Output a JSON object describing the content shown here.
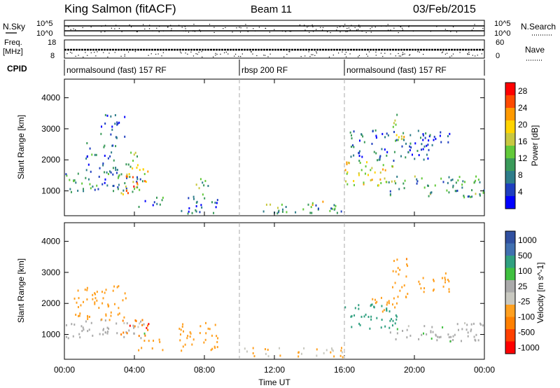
{
  "header": {
    "station": "King Salmon (fitACF)",
    "beam": "Beam 11",
    "date": "03/Feb/2015"
  },
  "strips": {
    "nsky_label": "N.Sky",
    "freq_label": "Freq.",
    "freq_unit": "[MHz]",
    "cpid_label": "CPID",
    "nsearch_label": "N.Search",
    "nave_label": "Nave",
    "noise_ticks": [
      "10^5",
      "10^0"
    ],
    "freq_ticks": [
      "18",
      "8"
    ],
    "nave_ticks": [
      "60",
      "0"
    ],
    "noise_ticks_right": [
      "10^5",
      "10^0"
    ]
  },
  "cpid_segments": [
    {
      "label": "normalsound (fast) 157 RF",
      "start_h": 0,
      "end_h": 10
    },
    {
      "label": "rbsp 200 RF",
      "start_h": 10,
      "end_h": 16
    },
    {
      "label": "normalsound (fast) 157 RF",
      "start_h": 16,
      "end_h": 24
    }
  ],
  "x_axis": {
    "label": "Time UT",
    "tick_labels": [
      "00:00",
      "04:00",
      "08:00",
      "12:00",
      "16:00",
      "20:00",
      "00:00"
    ],
    "tick_hours": [
      0,
      4,
      8,
      12,
      16,
      20,
      24
    ]
  },
  "colors": {
    "power": [
      "#0000ff",
      "#1f3fbf",
      "#2e7d8a",
      "#3a9a5a",
      "#62c93a",
      "#c8c840",
      "#ffd400",
      "#ff9a00",
      "#ff4a00",
      "#ff0000"
    ],
    "velocity": [
      "#3050a0",
      "#4070b0",
      "#30a080",
      "#40c040",
      "#aaaaaa",
      "#c8c8c0",
      "#ffa020",
      "#ff8000",
      "#ff4000",
      "#ff0000"
    ]
  },
  "chart_data": [
    {
      "type": "heatmap",
      "title": "",
      "xlabel": "Time UT",
      "ylabel": "Slant Range [km]",
      "xlim": [
        0,
        24
      ],
      "ylim": [
        200,
        4600
      ],
      "ytick_labels": [
        "1000",
        "2000",
        "3000",
        "4000"
      ],
      "yticks": [
        1000,
        2000,
        3000,
        4000
      ],
      "colorbar": {
        "label": "Power [dB]",
        "tick_labels": [
          "4",
          "8",
          "12",
          "16",
          "20",
          "24",
          "28"
        ],
        "range": [
          0,
          30
        ]
      },
      "blobs": [
        {
          "t": [
            0.0,
            4.6
          ],
          "r": [
            900,
            1600
          ],
          "v": 8
        },
        {
          "t": [
            1.2,
            3.2
          ],
          "r": [
            1600,
            2600
          ],
          "v": 7
        },
        {
          "t": [
            3.2,
            4.8
          ],
          "r": [
            900,
            1800
          ],
          "v": 22
        },
        {
          "t": [
            3.3,
            4.4
          ],
          "r": [
            1800,
            2300
          ],
          "v": 15
        },
        {
          "t": [
            4.2,
            5.6
          ],
          "r": [
            500,
            900
          ],
          "v": 7
        },
        {
          "t": [
            2.0,
            3.5
          ],
          "r": [
            2700,
            3500
          ],
          "v": 5
        },
        {
          "t": [
            7.5,
            8.3
          ],
          "r": [
            900,
            1500
          ],
          "v": 12
        },
        {
          "t": [
            6.5,
            8.8
          ],
          "r": [
            300,
            900
          ],
          "v": 6
        },
        {
          "t": [
            10.0,
            16.0
          ],
          "r": [
            300,
            600
          ],
          "v": 10
        },
        {
          "t": [
            14.0,
            15.2
          ],
          "r": [
            500,
            700
          ],
          "v": 20
        },
        {
          "t": [
            16.0,
            19.0
          ],
          "r": [
            1200,
            2000
          ],
          "v": 18
        },
        {
          "t": [
            18.5,
            24.0
          ],
          "r": [
            800,
            1500
          ],
          "v": 10
        },
        {
          "t": [
            18.7,
            19.4
          ],
          "r": [
            2400,
            3500
          ],
          "v": 16
        },
        {
          "t": [
            16.3,
            21.0
          ],
          "r": [
            2000,
            3000
          ],
          "v": 6
        },
        {
          "t": [
            20.0,
            22.0
          ],
          "r": [
            2500,
            3000
          ],
          "v": 6
        }
      ]
    },
    {
      "type": "heatmap",
      "title": "",
      "xlabel": "Time UT",
      "ylabel": "Slant Range [km]",
      "xlim": [
        0,
        24
      ],
      "ylim": [
        200,
        4600
      ],
      "ytick_labels": [
        "1000",
        "2000",
        "3000",
        "4000"
      ],
      "yticks": [
        1000,
        2000,
        3000,
        4000
      ],
      "colorbar": {
        "label": "Velocity [m s^-1]",
        "tick_labels": [
          "1000",
          "500",
          "100",
          "25",
          "-25",
          "-100",
          "-500",
          "-1000"
        ]
      },
      "blobs": [
        {
          "t": [
            0.0,
            4.6
          ],
          "r": [
            900,
            1500
          ],
          "v": 0
        },
        {
          "t": [
            0.5,
            3.5
          ],
          "r": [
            1500,
            2600
          ],
          "v": -150
        },
        {
          "t": [
            3.2,
            4.8
          ],
          "r": [
            900,
            1500
          ],
          "v": -800
        },
        {
          "t": [
            4.2,
            5.6
          ],
          "r": [
            500,
            900
          ],
          "v": -300
        },
        {
          "t": [
            6.5,
            8.8
          ],
          "r": [
            500,
            1400
          ],
          "v": -250
        },
        {
          "t": [
            10.0,
            16.0
          ],
          "r": [
            300,
            600
          ],
          "v": -100
        },
        {
          "t": [
            16.0,
            19.0
          ],
          "r": [
            1200,
            2000
          ],
          "v": 150
        },
        {
          "t": [
            18.5,
            24.0
          ],
          "r": [
            800,
            1400
          ],
          "v": 0
        },
        {
          "t": [
            18.7,
            19.6
          ],
          "r": [
            2200,
            3500
          ],
          "v": -400
        },
        {
          "t": [
            20.0,
            22.0
          ],
          "r": [
            2400,
            3000
          ],
          "v": -300
        },
        {
          "t": [
            17.5,
            19.0
          ],
          "r": [
            1700,
            2300
          ],
          "v": -200
        }
      ]
    }
  ]
}
